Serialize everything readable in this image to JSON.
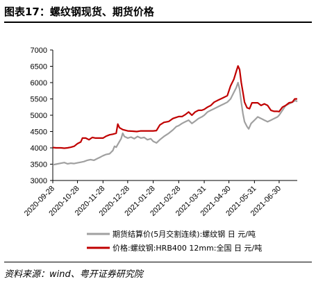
{
  "figure": {
    "title": "图表17：螺纹钢现货、期货价格",
    "source": "资料来源：wind、粤开证券研究院"
  },
  "chart_data": {
    "type": "line",
    "title": "",
    "xlabel": "",
    "ylabel": "",
    "ylim": [
      3000,
      7000
    ],
    "yticks": [
      3000,
      3500,
      4000,
      4500,
      5000,
      5500,
      6000,
      6500,
      7000
    ],
    "xlim": [
      "2020-09-28",
      "2021-07-22"
    ],
    "xticks": [
      "2020-09-28",
      "2020-10-28",
      "2020-11-28",
      "2020-12-28",
      "2021-01-28",
      "2021-02-28",
      "2021-03-31",
      "2021-04-30",
      "2021-05-31",
      "2021-06-30"
    ],
    "grid": false,
    "legend": "bottom",
    "series": [
      {
        "name": "期货结算价(5月交割连续):螺纹钢 日 元/吨",
        "color": "#a0a0a0",
        "points": [
          [
            "2020-09-28",
            3480
          ],
          [
            "2020-10-02",
            3500
          ],
          [
            "2020-10-08",
            3530
          ],
          [
            "2020-10-12",
            3550
          ],
          [
            "2020-10-16",
            3510
          ],
          [
            "2020-10-20",
            3530
          ],
          [
            "2020-10-24",
            3520
          ],
          [
            "2020-10-28",
            3540
          ],
          [
            "2020-11-01",
            3560
          ],
          [
            "2020-11-05",
            3580
          ],
          [
            "2020-11-09",
            3620
          ],
          [
            "2020-11-13",
            3640
          ],
          [
            "2020-11-17",
            3620
          ],
          [
            "2020-11-21",
            3670
          ],
          [
            "2020-11-25",
            3720
          ],
          [
            "2020-11-28",
            3760
          ],
          [
            "2020-12-02",
            3800
          ],
          [
            "2020-12-06",
            3820
          ],
          [
            "2020-12-10",
            3920
          ],
          [
            "2020-12-12",
            4050
          ],
          [
            "2020-12-14",
            4020
          ],
          [
            "2020-12-17",
            4150
          ],
          [
            "2020-12-20",
            4280
          ],
          [
            "2020-12-22",
            4450
          ],
          [
            "2020-12-24",
            4350
          ],
          [
            "2020-12-28",
            4300
          ],
          [
            "2021-01-01",
            4330
          ],
          [
            "2021-01-05",
            4280
          ],
          [
            "2021-01-09",
            4350
          ],
          [
            "2021-01-13",
            4300
          ],
          [
            "2021-01-17",
            4320
          ],
          [
            "2021-01-21",
            4250
          ],
          [
            "2021-01-25",
            4280
          ],
          [
            "2021-01-28",
            4200
          ],
          [
            "2021-02-01",
            4150
          ],
          [
            "2021-02-05",
            4250
          ],
          [
            "2021-02-10",
            4350
          ],
          [
            "2021-02-16",
            4450
          ],
          [
            "2021-02-21",
            4550
          ],
          [
            "2021-02-25",
            4650
          ],
          [
            "2021-02-28",
            4680
          ],
          [
            "2021-03-04",
            4750
          ],
          [
            "2021-03-08",
            4800
          ],
          [
            "2021-03-12",
            4850
          ],
          [
            "2021-03-16",
            4750
          ],
          [
            "2021-03-20",
            4820
          ],
          [
            "2021-03-24",
            4900
          ],
          [
            "2021-03-28",
            4950
          ],
          [
            "2021-03-31",
            5000
          ],
          [
            "2021-04-04",
            5100
          ],
          [
            "2021-04-08",
            5150
          ],
          [
            "2021-04-12",
            5200
          ],
          [
            "2021-04-16",
            5250
          ],
          [
            "2021-04-20",
            5300
          ],
          [
            "2021-04-24",
            5350
          ],
          [
            "2021-04-28",
            5400
          ],
          [
            "2021-05-02",
            5500
          ],
          [
            "2021-05-06",
            5700
          ],
          [
            "2021-05-09",
            5850
          ],
          [
            "2021-05-11",
            6000
          ],
          [
            "2021-05-13",
            5800
          ],
          [
            "2021-05-15",
            5400
          ],
          [
            "2021-05-17",
            5050
          ],
          [
            "2021-05-19",
            4800
          ],
          [
            "2021-05-22",
            4650
          ],
          [
            "2021-05-24",
            4580
          ],
          [
            "2021-05-27",
            4750
          ],
          [
            "2021-05-31",
            4850
          ],
          [
            "2021-06-04",
            4950
          ],
          [
            "2021-06-08",
            4900
          ],
          [
            "2021-06-12",
            4850
          ],
          [
            "2021-06-16",
            4800
          ],
          [
            "2021-06-20",
            4850
          ],
          [
            "2021-06-24",
            4900
          ],
          [
            "2021-06-28",
            4950
          ],
          [
            "2021-06-30",
            5000
          ],
          [
            "2021-07-04",
            5150
          ],
          [
            "2021-07-08",
            5300
          ],
          [
            "2021-07-12",
            5350
          ],
          [
            "2021-07-16",
            5400
          ],
          [
            "2021-07-20",
            5450
          ],
          [
            "2021-07-22",
            5420
          ]
        ]
      },
      {
        "name": "价格:螺纹钢:HRB400 12mm:全国 日 元/吨",
        "color": "#c00000",
        "points": [
          [
            "2020-09-28",
            4010
          ],
          [
            "2020-10-02",
            4000
          ],
          [
            "2020-10-08",
            4000
          ],
          [
            "2020-10-12",
            3990
          ],
          [
            "2020-10-16",
            4000
          ],
          [
            "2020-10-20",
            4020
          ],
          [
            "2020-10-24",
            4050
          ],
          [
            "2020-10-28",
            4130
          ],
          [
            "2020-11-01",
            4180
          ],
          [
            "2020-11-03",
            4300
          ],
          [
            "2020-11-07",
            4300
          ],
          [
            "2020-11-11",
            4250
          ],
          [
            "2020-11-15",
            4320
          ],
          [
            "2020-11-19",
            4300
          ],
          [
            "2020-11-23",
            4300
          ],
          [
            "2020-11-28",
            4300
          ],
          [
            "2020-12-02",
            4360
          ],
          [
            "2020-12-06",
            4400
          ],
          [
            "2020-12-10",
            4420
          ],
          [
            "2020-12-14",
            4450
          ],
          [
            "2020-12-16",
            4730
          ],
          [
            "2020-12-18",
            4620
          ],
          [
            "2020-12-22",
            4560
          ],
          [
            "2020-12-28",
            4520
          ],
          [
            "2021-01-03",
            4510
          ],
          [
            "2021-01-08",
            4500
          ],
          [
            "2021-01-13",
            4520
          ],
          [
            "2021-01-18",
            4520
          ],
          [
            "2021-01-23",
            4520
          ],
          [
            "2021-01-28",
            4520
          ],
          [
            "2021-02-01",
            4530
          ],
          [
            "2021-02-05",
            4700
          ],
          [
            "2021-02-10",
            4780
          ],
          [
            "2021-02-16",
            4810
          ],
          [
            "2021-02-21",
            4900
          ],
          [
            "2021-02-28",
            4960
          ],
          [
            "2021-03-04",
            4960
          ],
          [
            "2021-03-08",
            5020
          ],
          [
            "2021-03-12",
            5100
          ],
          [
            "2021-03-16",
            5000
          ],
          [
            "2021-03-20",
            5100
          ],
          [
            "2021-03-24",
            5150
          ],
          [
            "2021-03-28",
            5150
          ],
          [
            "2021-03-31",
            5180
          ],
          [
            "2021-04-04",
            5250
          ],
          [
            "2021-04-08",
            5300
          ],
          [
            "2021-04-12",
            5400
          ],
          [
            "2021-04-16",
            5450
          ],
          [
            "2021-04-20",
            5500
          ],
          [
            "2021-04-24",
            5550
          ],
          [
            "2021-04-28",
            5600
          ],
          [
            "2021-05-02",
            5900
          ],
          [
            "2021-05-06",
            6100
          ],
          [
            "2021-05-09",
            6350
          ],
          [
            "2021-05-11",
            6510
          ],
          [
            "2021-05-13",
            6400
          ],
          [
            "2021-05-15",
            6000
          ],
          [
            "2021-05-17",
            5700
          ],
          [
            "2021-05-19",
            5400
          ],
          [
            "2021-05-22",
            5230
          ],
          [
            "2021-05-25",
            5200
          ],
          [
            "2021-05-28",
            5380
          ],
          [
            "2021-05-31",
            5380
          ],
          [
            "2021-06-04",
            5380
          ],
          [
            "2021-06-08",
            5300
          ],
          [
            "2021-06-12",
            5350
          ],
          [
            "2021-06-16",
            5300
          ],
          [
            "2021-06-20",
            5150
          ],
          [
            "2021-06-24",
            5120
          ],
          [
            "2021-06-28",
            5120
          ],
          [
            "2021-06-30",
            5110
          ],
          [
            "2021-07-04",
            5250
          ],
          [
            "2021-07-08",
            5300
          ],
          [
            "2021-07-12",
            5380
          ],
          [
            "2021-07-16",
            5400
          ],
          [
            "2021-07-19",
            5500
          ],
          [
            "2021-07-22",
            5500
          ]
        ]
      }
    ]
  }
}
